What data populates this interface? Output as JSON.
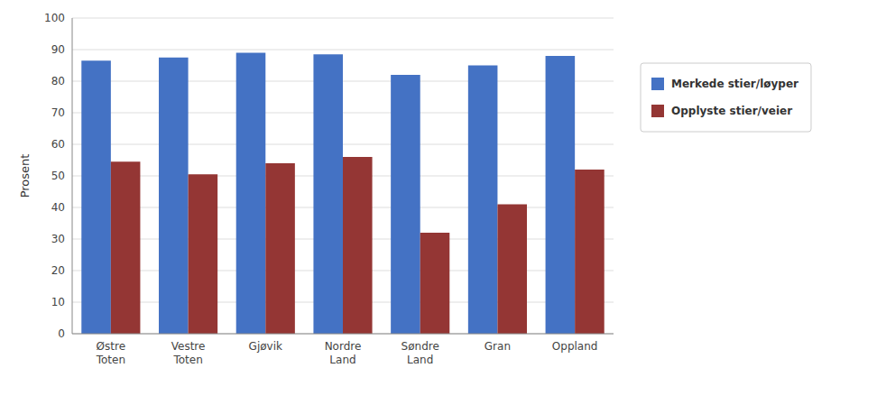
{
  "chart_data": {
    "type": "bar",
    "categories": [
      "Østre\nToten",
      "Vestre\nToten",
      "Gjøvik",
      "Nordre\nLand",
      "Søndre\nLand",
      "Gran",
      "Oppland"
    ],
    "series": [
      {
        "name": "Merkede stier/løyper",
        "color": "#4472C4",
        "values": [
          86.5,
          87.5,
          89.0,
          88.5,
          82.0,
          85.0,
          88.0
        ]
      },
      {
        "name": "Opplyste stier/veier",
        "color": "#943634",
        "values": [
          54.5,
          50.5,
          54.0,
          56.0,
          32.0,
          41.0,
          52.0
        ]
      }
    ],
    "ylabel": "Prosent",
    "ylim": [
      0,
      100
    ],
    "yticks": [
      0,
      10,
      20,
      30,
      40,
      50,
      60,
      70,
      80,
      90,
      100
    ],
    "grid": true,
    "legend": "right"
  }
}
